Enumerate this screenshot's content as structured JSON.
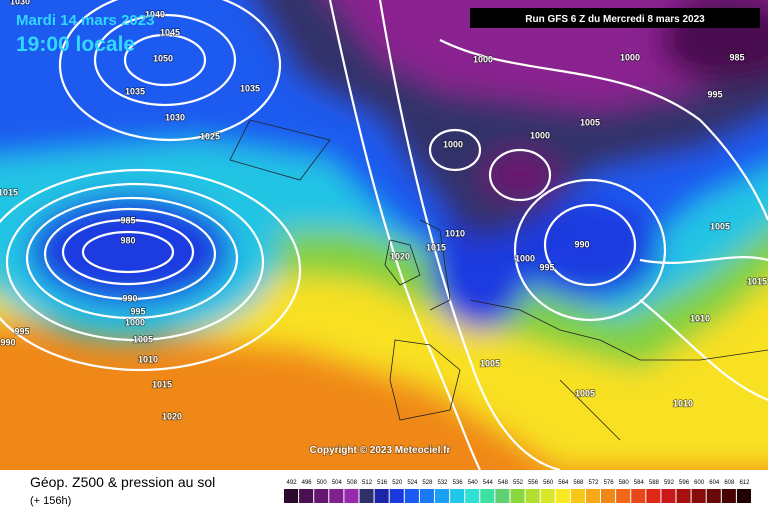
{
  "header": {
    "date": "Mardi 14 mars 2023",
    "time": "19:00 locale",
    "run": "Run GFS 6 Z du Mercredi 8 mars 2023"
  },
  "isobar_labels": [
    1030,
    1040,
    1045,
    1050,
    1035,
    1035,
    1030,
    1025,
    1015,
    985,
    980,
    990,
    995,
    1000,
    1005,
    1010,
    1015,
    1020,
    995,
    990,
    1000,
    1000,
    985,
    995,
    1000,
    1005,
    1000,
    1010,
    1015,
    1020,
    1000,
    995,
    990,
    1005,
    1015,
    1010,
    1005,
    1005,
    1010
  ],
  "copyright": "Copyright © 2023 Meteociel.fr",
  "footer": {
    "title": "Géop. Z500 & pression au sol",
    "lead": "(+ 156h)"
  },
  "scale": {
    "labels": [
      492,
      496,
      500,
      504,
      508,
      512,
      516,
      520,
      524,
      528,
      532,
      536,
      540,
      544,
      548,
      552,
      556,
      560,
      564,
      568,
      572,
      576,
      580,
      584,
      588,
      592,
      596,
      600,
      604,
      608,
      612
    ],
    "colors": [
      "#2b0a2e",
      "#4a1050",
      "#651870",
      "#7e2090",
      "#9828b0",
      "#30306a",
      "#1c24a8",
      "#1a3ae0",
      "#1a5af0",
      "#1a7af5",
      "#1aa0f5",
      "#20c8e8",
      "#30e0d0",
      "#40e0a0",
      "#60d070",
      "#88d840",
      "#b0e030",
      "#d8e828",
      "#f8e820",
      "#f8c818",
      "#f8a818",
      "#f08818",
      "#f06818",
      "#e84818",
      "#e02818",
      "#c81818",
      "#a81010",
      "#880c0c",
      "#680808",
      "#480404",
      "#200000"
    ]
  }
}
